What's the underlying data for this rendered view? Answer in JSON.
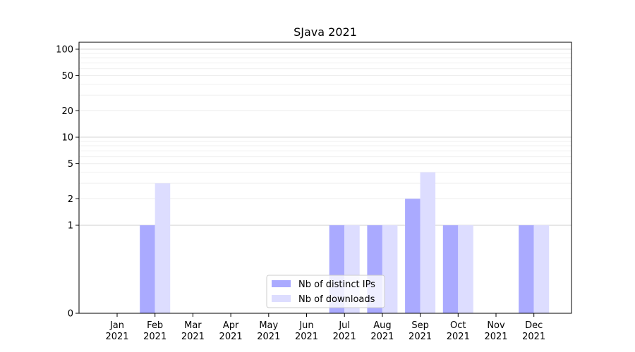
{
  "chart_data": {
    "type": "bar",
    "title": "SJava 2021",
    "xlabel": "",
    "ylabel": "",
    "y_scale": "symlog",
    "ylim": [
      0,
      120
    ],
    "y_ticks": [
      0,
      1,
      2,
      5,
      10,
      20,
      50,
      100
    ],
    "y_tick_labels": [
      "0",
      "1",
      "2",
      "5",
      "10",
      "20",
      "50",
      "100"
    ],
    "grid": true,
    "legend_position": "bottom-center",
    "categories": [
      "Jan 2021",
      "Feb 2021",
      "Mar 2021",
      "Apr 2021",
      "May 2021",
      "Jun 2021",
      "Jul 2021",
      "Aug 2021",
      "Sep 2021",
      "Oct 2021",
      "Nov 2021",
      "Dec 2021"
    ],
    "category_labels": [
      {
        "month": "Jan",
        "year": "2021"
      },
      {
        "month": "Feb",
        "year": "2021"
      },
      {
        "month": "Mar",
        "year": "2021"
      },
      {
        "month": "Apr",
        "year": "2021"
      },
      {
        "month": "May",
        "year": "2021"
      },
      {
        "month": "Jun",
        "year": "2021"
      },
      {
        "month": "Jul",
        "year": "2021"
      },
      {
        "month": "Aug",
        "year": "2021"
      },
      {
        "month": "Sep",
        "year": "2021"
      },
      {
        "month": "Oct",
        "year": "2021"
      },
      {
        "month": "Nov",
        "year": "2021"
      },
      {
        "month": "Dec",
        "year": "2021"
      }
    ],
    "series": [
      {
        "name": "Nb of distinct IPs",
        "color": "#aaaaff",
        "values": [
          0,
          1,
          0,
          0,
          0,
          0,
          1,
          1,
          2,
          1,
          0,
          1
        ]
      },
      {
        "name": "Nb of downloads",
        "color": "#ddddff",
        "values": [
          0,
          3,
          0,
          0,
          0,
          0,
          1,
          1,
          4,
          1,
          0,
          1
        ]
      }
    ]
  }
}
